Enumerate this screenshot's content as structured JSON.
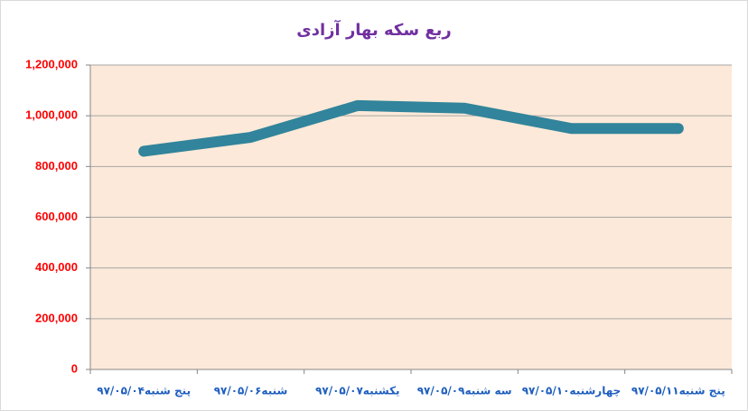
{
  "chart_data": {
    "type": "line",
    "title": "ربع سکه بهار آزادی",
    "categories": [
      "پنج شنبه۹۷/۰۵/۰۴",
      "شنبه۹۷/۰۵/۰۶",
      "یکشنبه۹۷/۰۵/۰۷",
      "سه شنبه۹۷/۰۵/۰۹",
      "چهارشنبه۹۷/۰۵/۱۰",
      "پنج شنبه۹۷/۰۵/۱۱"
    ],
    "values": [
      860000,
      915000,
      1040000,
      1030000,
      950000,
      950000
    ],
    "color": "#31849b",
    "ylim": [
      0,
      1200000
    ],
    "yticks": [
      0,
      {
        "value": 200000,
        "label": "200,000"
      },
      {
        "value": 400000,
        "label": "400,000"
      },
      {
        "value": 600000,
        "label": "600,000"
      },
      {
        "value": 800000,
        "label": "800,000"
      },
      {
        "value": 1000000,
        "label": "1,000,000"
      },
      {
        "value": 1200000,
        "label": "1,200,000"
      }
    ],
    "grid": true
  }
}
